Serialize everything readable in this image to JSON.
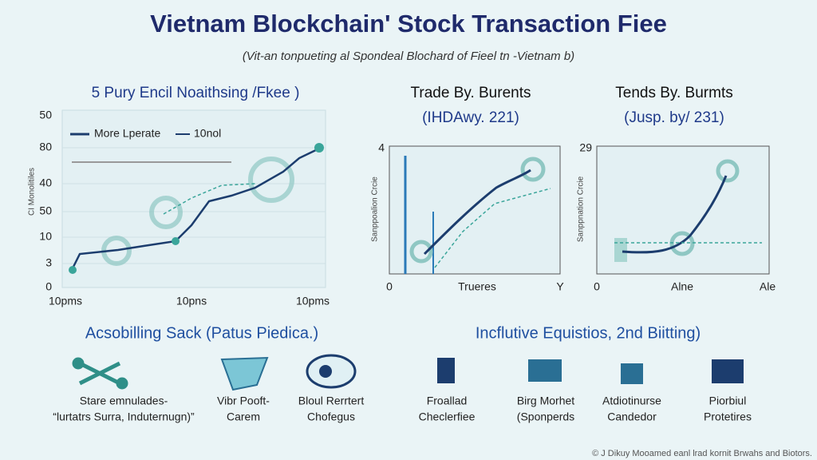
{
  "header": {
    "title": "Vietnam Blockchain' Stock Transaction Fiee",
    "subtitle": "(Vit-an tonpueting al Spondeal Blochard of Fieel tn -Vietnam b)"
  },
  "left_chart": {
    "title": "5 Pury Encil Noaithsing /Fkee )",
    "legend": [
      "More Lperate",
      "10nol"
    ],
    "y_labels": [
      "50",
      "80",
      "40",
      "50",
      "10",
      "3",
      "0"
    ],
    "y_axis_label": "CI Monolitiles",
    "x_labels": [
      "10pms",
      "10pns",
      "10pms"
    ]
  },
  "middle_chart": {
    "title": "Trade By. Burents",
    "subtitle": "(IHDAwy. 221)",
    "y_labels": [
      "4"
    ],
    "y_axis_label": "Sanppoalion Crcie",
    "x_labels": [
      "0",
      "Trueres",
      "Y"
    ]
  },
  "right_chart": {
    "title": "Tends By. Burmts",
    "subtitle": "(Jusp. by/ 231)",
    "y_labels": [
      "29"
    ],
    "y_axis_label": "Sanppnation Crcie",
    "x_labels": [
      "0",
      "Alne",
      "Ale"
    ]
  },
  "sections": [
    {
      "title": "Acsobilling Sack (Patus Piedica.)",
      "items": [
        [
          "Stare emnulades-",
          "“lurtatrs Surra, Induternugn)”"
        ],
        [
          "Vibr Pooft-",
          "Carem"
        ],
        [
          "Bloul Rerrtert",
          "Chofegus"
        ]
      ]
    },
    {
      "title": "Incflutive Equistios, 2nd Biitting)",
      "items": [
        [
          "Froallad",
          "Checlerfiee"
        ],
        [
          "Birg Morhet",
          "(Sponperds"
        ],
        [
          "Atdiotinurse",
          "Candedor"
        ],
        [
          "Piorbiul",
          "Protetires"
        ]
      ]
    }
  ],
  "footer": "© J Dikuy Mooamed eanl lrad kornit Brwahs and Biotors."
}
